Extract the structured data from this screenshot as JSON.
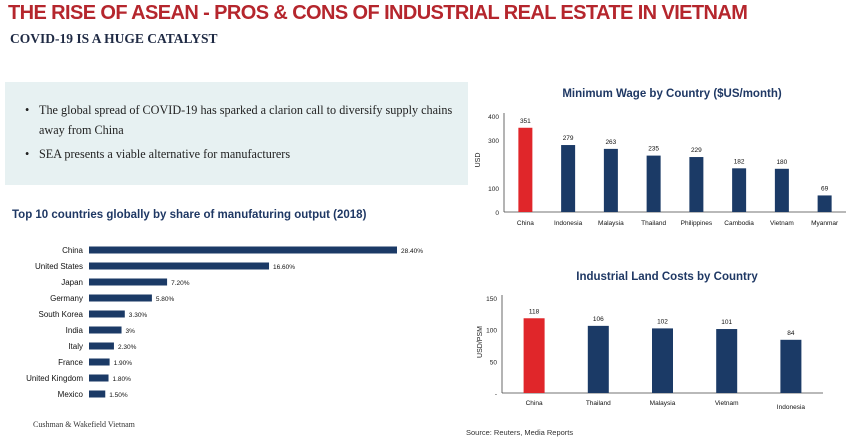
{
  "header": {
    "title": "THE RISE OF ASEAN - PROS & CONS OF INDUSTRIAL REAL ESTATE IN VIETNAM",
    "subtitle": "COVID-19 IS A HUGE CATALYST"
  },
  "bullets": [
    "The global spread of COVID-19 has sparked a clarion call to diversify supply chains away from China",
    "SEA presents a viable alternative for manufacturers"
  ],
  "colors": {
    "highlight": "#e0262a",
    "bar": "#1b3a66",
    "title": "#1f3864",
    "brand": "#b5262d"
  },
  "chart_data": [
    {
      "id": "mfg",
      "type": "bar",
      "orientation": "horizontal",
      "title": "Top 10 countries globally by share of manufaturing output (2018)",
      "categories": [
        "China",
        "United States",
        "Japan",
        "Germany",
        "South Korea",
        "India",
        "Italy",
        "France",
        "United Kingdom",
        "Mexico"
      ],
      "values": [
        28.4,
        16.6,
        7.2,
        5.8,
        3.3,
        3.0,
        2.3,
        1.9,
        1.8,
        1.5
      ],
      "value_labels": [
        "28.40%",
        "16.60%",
        "7.20%",
        "5.80%",
        "3.30%",
        "3%",
        "2.30%",
        "1.90%",
        "1.80%",
        "1.50%"
      ],
      "xlabel": "",
      "ylabel": "",
      "xlim": [
        0,
        30
      ]
    },
    {
      "id": "wage",
      "type": "bar",
      "title": "Minimum Wage by Country ($US/month)",
      "categories": [
        "China",
        "Indonesia",
        "Malaysia",
        "Thailand",
        "Philippines",
        "Cambodia",
        "Vietnam",
        "Myanmar"
      ],
      "values": [
        351,
        279,
        263,
        235,
        229,
        182,
        180,
        69
      ],
      "value_labels": [
        "351",
        "279",
        "263",
        "235",
        "229",
        "182",
        "180",
        "69"
      ],
      "ylabel": "USD",
      "xlabel": "",
      "ylim": [
        0,
        400
      ],
      "yticks": [
        0,
        100,
        300,
        400
      ],
      "ytick_labels": [
        "0",
        "100",
        "300",
        "400"
      ],
      "highlight_index": 0
    },
    {
      "id": "land",
      "type": "bar",
      "title": "Industrial Land Costs by Country",
      "categories": [
        "China",
        "Thailand",
        "Malaysia",
        "Vietnam",
        "Indonesia"
      ],
      "values": [
        118,
        106,
        102,
        101,
        84
      ],
      "value_labels": [
        "118",
        "106",
        "102",
        "101",
        "84"
      ],
      "ylabel": "USD/PSM",
      "xlabel": "",
      "ylim": [
        0,
        150
      ],
      "yticks": [
        0,
        50,
        100,
        150
      ],
      "ytick_labels": [
        "-",
        "50",
        "100",
        "150"
      ],
      "highlight_index": 0
    }
  ],
  "footer": {
    "left_source": "Cushman & Wakefield Vietnam",
    "right_source": "Source: Reuters, Media Reports"
  }
}
